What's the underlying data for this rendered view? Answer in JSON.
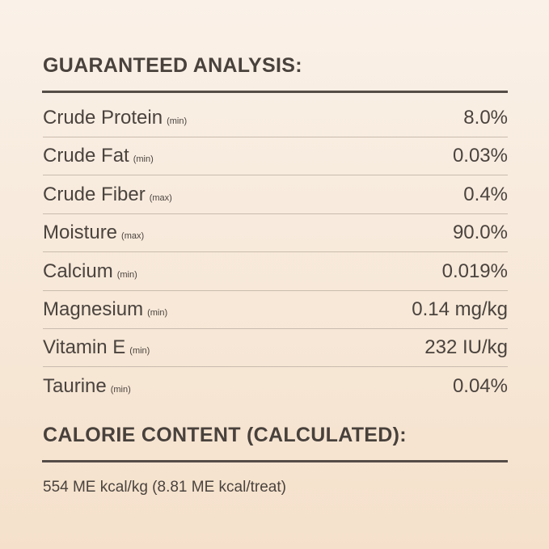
{
  "analysis": {
    "heading": "GUARANTEED ANALYSIS:",
    "rows": [
      {
        "label": "Crude Protein",
        "qualifier": "(min)",
        "value": "8.0%"
      },
      {
        "label": "Crude Fat",
        "qualifier": "(min)",
        "value": "0.03%"
      },
      {
        "label": "Crude Fiber",
        "qualifier": "(max)",
        "value": "0.4%"
      },
      {
        "label": "Moisture",
        "qualifier": "(max)",
        "value": "90.0%"
      },
      {
        "label": "Calcium",
        "qualifier": "(min)",
        "value": "0.019%"
      },
      {
        "label": "Magnesium",
        "qualifier": "(min)",
        "value": "0.14 mg/kg"
      },
      {
        "label": "Vitamin E",
        "qualifier": "(min)",
        "value": "232 IU/kg"
      },
      {
        "label": "Taurine",
        "qualifier": "(min)",
        "value": "0.04%"
      }
    ]
  },
  "calorie": {
    "heading": "CALORIE CONTENT (CALCULATED):",
    "text": "554 ME kcal/kg (8.81 ME kcal/treat)"
  }
}
